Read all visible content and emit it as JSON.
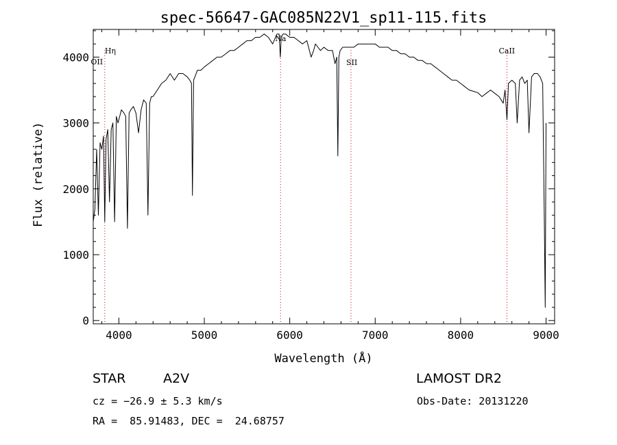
{
  "chart_data": {
    "type": "line",
    "title": "spec-56647-GAC085N22V1_sp11-115.fits",
    "xlabel": "Wavelength (Å)",
    "ylabel": "Flux (relative)",
    "xlim": [
      3700,
      9100
    ],
    "ylim": [
      -50,
      4420
    ],
    "x_ticks": [
      4000,
      5000,
      6000,
      7000,
      8000,
      9000
    ],
    "y_ticks": [
      0,
      1000,
      2000,
      3000,
      4000
    ],
    "grid": false,
    "series": [
      {
        "x": [
          3700,
          3720,
          3740,
          3760,
          3780,
          3800,
          3820,
          3835,
          3850,
          3870,
          3890,
          3910,
          3930,
          3950,
          3970,
          3990,
          4010,
          4030,
          4060,
          4080,
          4100,
          4120,
          4140,
          4170,
          4200,
          4230,
          4260,
          4290,
          4320,
          4340,
          4360,
          4380,
          4400,
          4450,
          4500,
          4550,
          4600,
          4650,
          4700,
          4750,
          4800,
          4830,
          4850,
          4861,
          4875,
          4890,
          4920,
          4960,
          5000,
          5050,
          5100,
          5150,
          5200,
          5250,
          5300,
          5350,
          5400,
          5450,
          5500,
          5550,
          5600,
          5650,
          5700,
          5750,
          5800,
          5850,
          5875,
          5890,
          5900,
          5920,
          5950,
          6000,
          6050,
          6100,
          6150,
          6200,
          6250,
          6280,
          6300,
          6330,
          6360,
          6400,
          6450,
          6500,
          6530,
          6550,
          6563,
          6575,
          6590,
          6620,
          6650,
          6700,
          6750,
          6800,
          6850,
          6900,
          6950,
          7000,
          7050,
          7100,
          7150,
          7200,
          7250,
          7300,
          7350,
          7400,
          7450,
          7500,
          7550,
          7600,
          7650,
          7700,
          7750,
          7800,
          7850,
          7900,
          7950,
          8000,
          8050,
          8100,
          8150,
          8200,
          8250,
          8300,
          8350,
          8400,
          8450,
          8498,
          8520,
          8542,
          8560,
          8600,
          8640,
          8662,
          8690,
          8720,
          8750,
          8780,
          8800,
          8830,
          8860,
          8900,
          8930,
          8960,
          8980,
          8990,
          9000
        ],
        "y": [
          1500,
          1700,
          2600,
          1600,
          2700,
          2600,
          2800,
          1500,
          2750,
          2900,
          1800,
          2900,
          3000,
          1500,
          3100,
          3000,
          3100,
          3200,
          3150,
          3100,
          1400,
          3150,
          3200,
          3250,
          3150,
          2850,
          3200,
          3350,
          3300,
          1600,
          3300,
          3400,
          3400,
          3500,
          3600,
          3650,
          3750,
          3650,
          3750,
          3750,
          3700,
          3650,
          3600,
          1900,
          3650,
          3700,
          3800,
          3800,
          3850,
          3900,
          3950,
          4000,
          4000,
          4050,
          4100,
          4100,
          4150,
          4200,
          4250,
          4250,
          4300,
          4300,
          4350,
          4300,
          4200,
          4350,
          4350,
          4000,
          4300,
          4350,
          4350,
          4300,
          4300,
          4250,
          4200,
          4250,
          4000,
          4100,
          4200,
          4150,
          4100,
          4150,
          4100,
          4100,
          3900,
          4000,
          2500,
          4000,
          4100,
          4150,
          4150,
          4150,
          4150,
          4200,
          4200,
          4200,
          4200,
          4200,
          4150,
          4150,
          4150,
          4100,
          4100,
          4050,
          4050,
          4000,
          4000,
          3950,
          3950,
          3900,
          3900,
          3850,
          3800,
          3750,
          3700,
          3650,
          3650,
          3600,
          3550,
          3500,
          3480,
          3460,
          3400,
          3450,
          3500,
          3450,
          3400,
          3300,
          3500,
          3050,
          3600,
          3650,
          3600,
          3000,
          3650,
          3700,
          3600,
          3650,
          2850,
          3700,
          3750,
          3750,
          3700,
          3600,
          1500,
          200,
          3000
        ]
      }
    ],
    "annotations": [
      {
        "label": "Hη",
        "x": 3835
      },
      {
        "label": "OII",
        "x": 3727
      },
      {
        "label": "Na",
        "x": 5892
      },
      {
        "label": "SII",
        "x": 6717
      },
      {
        "label": "CaII",
        "x": 8542
      }
    ]
  },
  "info": {
    "object_type": "STAR",
    "subclass": "A2V",
    "survey": "LAMOST DR2",
    "redshift_line": "cz = −26.9 ± 5.3 km/s",
    "obs_date_line": "Obs-Date: 20131220",
    "coords_line": "RA =  85.91483, DEC =  24.68757"
  },
  "colors": {
    "spectrum": "#000000",
    "axes": "#000000",
    "line_markers": "#cc0000"
  }
}
